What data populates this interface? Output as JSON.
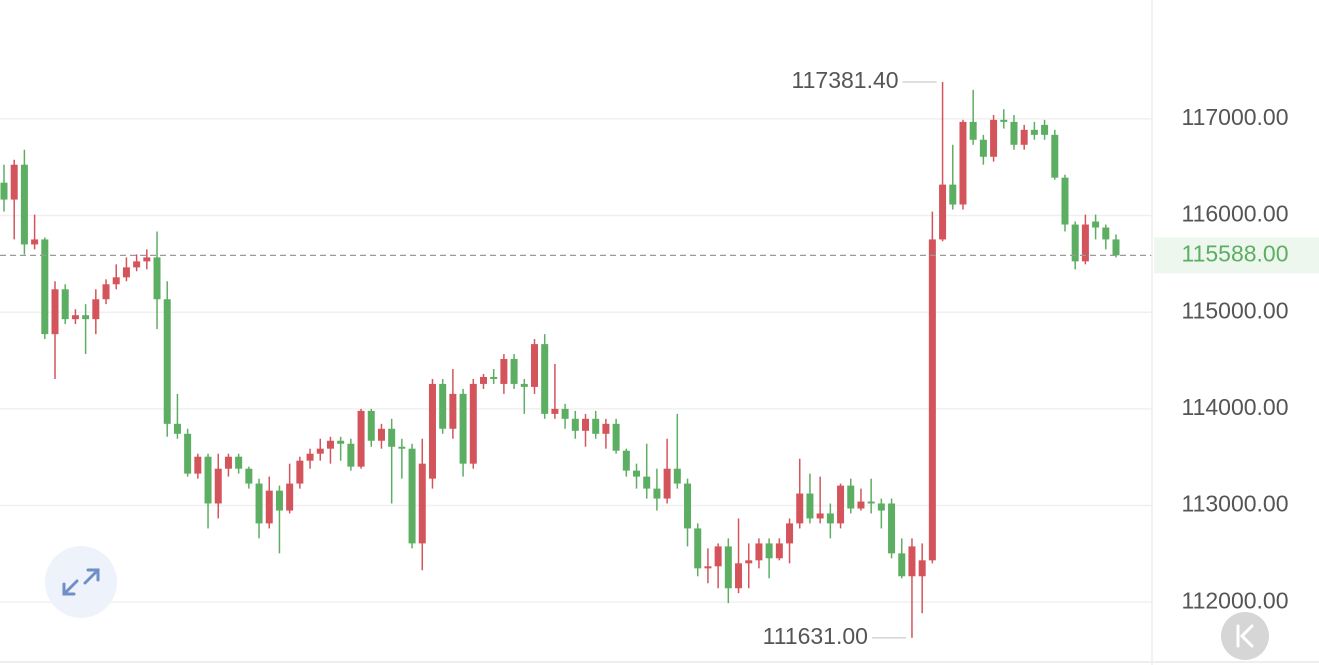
{
  "chart_data": {
    "type": "candlestick",
    "open": [
      116340,
      116165,
      116526,
      115701,
      115753,
      114773,
      115237,
      114928,
      114969,
      114928,
      115134,
      115289,
      115361,
      115464,
      115526,
      115567,
      115134,
      113845,
      113742,
      113330,
      113505,
      113021,
      113381,
      113505,
      113381,
      113227,
      112815,
      113154,
      112948,
      113227,
      113464,
      113536,
      113588,
      113670,
      113639,
      113402,
      113979,
      113670,
      113794,
      113608,
      113588,
      112608,
      113278,
      114258,
      113794,
      114155,
      113433,
      114258,
      114330,
      114258,
      114516,
      114258,
      114227,
      114670,
      113948,
      114000,
      113897,
      113773,
      113897,
      113742,
      113845,
      113567,
      113361,
      113299,
      113175,
      113072,
      113381,
      113227,
      112763,
      112350,
      112371,
      112577,
      112144,
      112402,
      112433,
      112608,
      112454,
      112608,
      112815,
      113124,
      112866,
      112918,
      112815,
      113206,
      112969,
      113041,
      113021,
      113021,
      112505,
      112268,
      112268,
      112433,
      115753,
      116320,
      116114,
      116969,
      116784,
      116608,
      116990,
      116969,
      116732,
      116887,
      116938,
      116835,
      116392,
      115907,
      115526,
      115938,
      115876,
      115753
    ],
    "high": [
      116526,
      116577,
      116681,
      116010,
      115773,
      115320,
      115289,
      115031,
      115083,
      115237,
      115340,
      115495,
      115567,
      115598,
      115650,
      115835,
      115320,
      114155,
      113794,
      113536,
      113536,
      113536,
      113536,
      113536,
      113402,
      113278,
      113299,
      113206,
      113433,
      113505,
      113588,
      113691,
      113711,
      113711,
      113691,
      114000,
      114000,
      113845,
      113897,
      113691,
      113639,
      113691,
      114309,
      114309,
      114412,
      114206,
      114309,
      114361,
      114412,
      114567,
      114567,
      114309,
      114722,
      114773,
      114464,
      114052,
      113979,
      113948,
      113979,
      113897,
      113897,
      113588,
      113433,
      113639,
      113381,
      113691,
      113948,
      113278,
      112815,
      112557,
      112608,
      112660,
      112866,
      112608,
      112660,
      112660,
      112660,
      112866,
      113484,
      113330,
      113299,
      113021,
      113227,
      113278,
      113175,
      113278,
      113072,
      113072,
      112660,
      112660,
      112608,
      116041,
      117381.4,
      116732,
      116990,
      117300,
      116835,
      117040,
      117100,
      117040,
      116938,
      116969,
      116990,
      116887,
      116423,
      115938,
      116010,
      116010,
      115907,
      115804
    ],
    "low": [
      116041,
      115753,
      115598,
      115650,
      114722,
      114309,
      114877,
      114877,
      114567,
      114773,
      115083,
      115237,
      115320,
      115423,
      115443,
      114825,
      113711,
      113691,
      113299,
      113278,
      112763,
      112866,
      113299,
      113330,
      113175,
      112660,
      112763,
      112505,
      112918,
      113175,
      113381,
      113464,
      113433,
      113464,
      113361,
      113381,
      113608,
      113588,
      113021,
      113278,
      112557,
      112330,
      113175,
      113742,
      113691,
      113299,
      113381,
      114206,
      114258,
      114155,
      114206,
      113948,
      114155,
      113897,
      113897,
      113794,
      113691,
      113608,
      113691,
      113588,
      113536,
      113299,
      113175,
      113072,
      112948,
      113021,
      113175,
      112577,
      112268,
      112196,
      112144,
      111990,
      112093,
      112144,
      112350,
      112247,
      112433,
      112402,
      112763,
      112815,
      112815,
      112660,
      112763,
      112918,
      112948,
      112918,
      112763,
      112454,
      112247,
      111631,
      111886,
      112402,
      115733,
      116062,
      116062,
      116732,
      116526,
      116557,
      116900,
      116681,
      116681,
      116784,
      116784,
      116371,
      115835,
      115443,
      115495,
      115753,
      115650,
      115567
    ],
    "close": [
      116165,
      116526,
      115701,
      115753,
      114773,
      115237,
      114928,
      114969,
      114928,
      115134,
      115289,
      115361,
      115464,
      115526,
      115567,
      115134,
      113845,
      113742,
      113330,
      113505,
      113021,
      113381,
      113505,
      113381,
      113227,
      112815,
      113154,
      112948,
      113227,
      113464,
      113536,
      113588,
      113670,
      113639,
      113402,
      113979,
      113670,
      113794,
      113608,
      113588,
      112608,
      113433,
      114258,
      113794,
      114155,
      113433,
      114258,
      114330,
      114309,
      114516,
      114258,
      114227,
      114670,
      113948,
      114000,
      113897,
      113773,
      113897,
      113742,
      113845,
      113567,
      113361,
      113299,
      113175,
      113072,
      113381,
      113227,
      112763,
      112350,
      112371,
      112577,
      112144,
      112402,
      112433,
      112608,
      112454,
      112608,
      112815,
      113124,
      112866,
      112918,
      112815,
      113206,
      112969,
      113041,
      113021,
      112948,
      112505,
      112268,
      112577,
      112433,
      115753,
      116320,
      116114,
      116969,
      116784,
      116608,
      116990,
      116969,
      116732,
      116887,
      116835,
      116835,
      116392,
      115907,
      115526,
      115907,
      115876,
      115753,
      115588
    ],
    "up_color": "#d4545c",
    "down_color": "#5cae62",
    "ylim": [
      111350,
      118230
    ],
    "yticks": [
      {
        "value": 112000,
        "label": "112000.00"
      },
      {
        "value": 113000,
        "label": "113000.00"
      },
      {
        "value": 114000,
        "label": "114000.00"
      },
      {
        "value": 115000,
        "label": "115000.00"
      },
      {
        "value": 116000,
        "label": "116000.00"
      },
      {
        "value": 117000,
        "label": "117000.00"
      }
    ],
    "grid": true,
    "max": {
      "value": 117381.4,
      "label": "117381.40"
    },
    "min": {
      "value": 111631,
      "label": "111631.00"
    },
    "last_price": {
      "value": 115588,
      "label": "115588.00"
    }
  }
}
